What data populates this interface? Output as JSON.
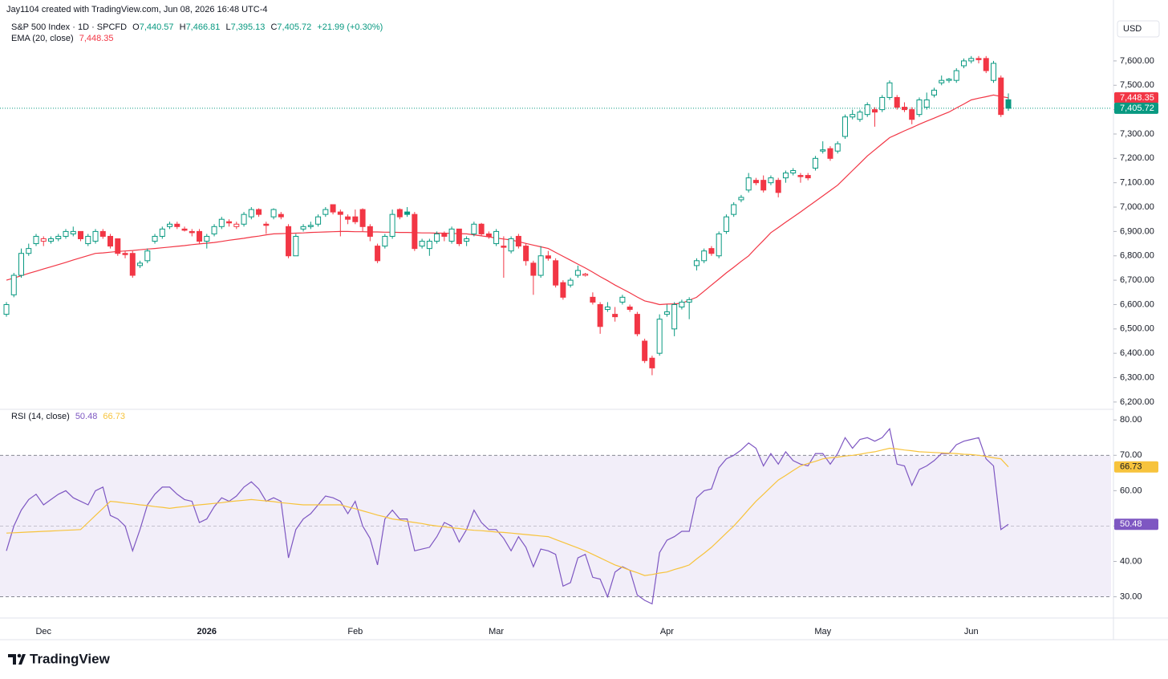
{
  "header": {
    "attribution": "Jay1104 created with TradingView.com, Jun 08, 2026 16:48 UTC-4",
    "currency": "USD",
    "brand": "TradingView"
  },
  "chart_data": [
    {
      "type": "candlestick",
      "title": "S&P 500 Index · 1D · SPCFD",
      "style": "hollow",
      "legend_labels": {
        "prefixes": [
          "O",
          "H",
          "L",
          "C"
        ],
        "values": [
          "7,440.57",
          "7,466.81",
          "7,395.13",
          "7,405.72"
        ],
        "change": "+21.99 (+0.30%)"
      },
      "up_color": "#089981",
      "down_color": "#f23645",
      "categories": [
        null,
        null,
        null,
        null,
        null,
        "Dec",
        null,
        null,
        null,
        null,
        null,
        null,
        null,
        null,
        null,
        null,
        null,
        null,
        null,
        null,
        null,
        null,
        null,
        null,
        null,
        null,
        null,
        "2026",
        null,
        null,
        null,
        null,
        null,
        null,
        null,
        null,
        null,
        null,
        null,
        null,
        null,
        null,
        null,
        null,
        null,
        null,
        null,
        "Feb",
        null,
        null,
        null,
        null,
        null,
        null,
        null,
        null,
        null,
        null,
        null,
        null,
        null,
        null,
        null,
        null,
        null,
        null,
        "Mar",
        null,
        null,
        null,
        null,
        null,
        null,
        null,
        null,
        null,
        null,
        null,
        null,
        null,
        null,
        null,
        null,
        null,
        null,
        null,
        null,
        null,
        null,
        "Apr",
        null,
        null,
        null,
        null,
        null,
        null,
        null,
        null,
        null,
        null,
        null,
        null,
        null,
        null,
        null,
        null,
        null,
        null,
        null,
        null,
        "May",
        null,
        null,
        null,
        null,
        null,
        null,
        null,
        null,
        null,
        null,
        null,
        null,
        null,
        null,
        null,
        null,
        null,
        null,
        null,
        "Jun",
        null,
        null,
        null,
        null,
        null
      ],
      "open": [
        6560,
        6640,
        6720,
        6810,
        6850,
        6860,
        6860,
        6870,
        6880,
        6890,
        6900,
        6850,
        6860,
        6900,
        6880,
        6870,
        6810,
        6810,
        6760,
        6780,
        6860,
        6880,
        6920,
        6930,
        6910,
        6900,
        6900,
        6860,
        6890,
        6920,
        6940,
        6920,
        6930,
        6960,
        6990,
        6930,
        6960,
        6970,
        6920,
        6800,
        6910,
        6920,
        6930,
        6970,
        7010,
        6980,
        6960,
        6960,
        6990,
        6920,
        6840,
        6840,
        6880,
        6990,
        6980,
        6970,
        6840,
        6830,
        6860,
        6890,
        6860,
        6910,
        6860,
        6890,
        6930,
        6890,
        6850,
        6840,
        6820,
        6880,
        6840,
        6770,
        6720,
        6800,
        6780,
        6690,
        6680,
        6720,
        6720,
        6630,
        6600,
        6580,
        6560,
        6610,
        6590,
        6560,
        6450,
        6380,
        6400,
        6560,
        6500,
        6590,
        6610,
        6760,
        6780,
        6830,
        6800,
        6900,
        6970,
        7030,
        7070,
        7110,
        7110,
        7100,
        7110,
        7120,
        7140,
        7130,
        7130,
        7160,
        7230,
        7240,
        7230,
        7290,
        7370,
        7360,
        7380,
        7400,
        7400,
        7450,
        7450,
        7410,
        7400,
        7380,
        7410,
        7460,
        7510,
        7520,
        7520,
        7580,
        7600,
        7610,
        7610,
        7520,
        7530,
        7440.57
      ],
      "high": [
        6610,
        6730,
        6830,
        6850,
        6890,
        6880,
        6880,
        6890,
        6910,
        6920,
        6900,
        6890,
        6910,
        6910,
        6890,
        6870,
        6820,
        6820,
        6780,
        6830,
        6890,
        6920,
        6940,
        6940,
        6920,
        6910,
        6910,
        6890,
        6930,
        6960,
        6950,
        6940,
        6980,
        7000,
        6995,
        6940,
        6995,
        6980,
        6930,
        6890,
        6930,
        6940,
        6970,
        7000,
        7010,
        6990,
        6970,
        6990,
        6995,
        6930,
        6850,
        6890,
        6990,
        6995,
        7000,
        6980,
        6870,
        6870,
        6900,
        6900,
        6920,
        6910,
        6880,
        6940,
        6935,
        6900,
        6910,
        6880,
        6880,
        6890,
        6850,
        6780,
        6840,
        6820,
        6790,
        6700,
        6710,
        6760,
        6730,
        6650,
        6610,
        6610,
        6590,
        6640,
        6600,
        6570,
        6460,
        6390,
        6560,
        6600,
        6610,
        6620,
        6630,
        6790,
        6830,
        6840,
        6900,
        6970,
        7020,
        7050,
        7140,
        7120,
        7130,
        7130,
        7120,
        7150,
        7160,
        7140,
        7140,
        7210,
        7270,
        7250,
        7270,
        7380,
        7400,
        7400,
        7430,
        7410,
        7460,
        7520,
        7460,
        7430,
        7410,
        7450,
        7470,
        7490,
        7540,
        7530,
        7570,
        7610,
        7620,
        7620,
        7620,
        7600,
        7540,
        7466.81
      ],
      "low": [
        6550,
        6630,
        6710,
        6800,
        6840,
        6840,
        6850,
        6860,
        6870,
        6880,
        6860,
        6840,
        6850,
        6870,
        6830,
        6800,
        6790,
        6710,
        6750,
        6770,
        6850,
        6870,
        6910,
        6910,
        6900,
        6880,
        6850,
        6830,
        6880,
        6910,
        6920,
        6910,
        6920,
        6950,
        6960,
        6890,
        6950,
        6950,
        6790,
        6800,
        6900,
        6910,
        6920,
        6960,
        6970,
        6880,
        6930,
        6930,
        6900,
        6860,
        6770,
        6830,
        6870,
        6950,
        6960,
        6820,
        6830,
        6800,
        6850,
        6860,
        6850,
        6840,
        6840,
        6880,
        6880,
        6870,
        6840,
        6710,
        6810,
        6830,
        6760,
        6640,
        6710,
        6780,
        6670,
        6620,
        6670,
        6710,
        6715,
        6600,
        6480,
        6570,
        6530,
        6600,
        6570,
        6470,
        6360,
        6310,
        6390,
        6550,
        6470,
        6580,
        6540,
        6740,
        6770,
        6800,
        6790,
        6890,
        6960,
        7020,
        7060,
        7090,
        7060,
        7090,
        7040,
        7100,
        7130,
        7100,
        7110,
        7150,
        7220,
        7190,
        7220,
        7280,
        7360,
        7350,
        7370,
        7330,
        7390,
        7440,
        7400,
        7390,
        7340,
        7370,
        7400,
        7450,
        7500,
        7510,
        7510,
        7570,
        7590,
        7590,
        7550,
        7510,
        7370,
        7395.13
      ],
      "close": [
        6600,
        6720,
        6810,
        6830,
        6880,
        6870,
        6870,
        6880,
        6900,
        6900,
        6870,
        6880,
        6900,
        6880,
        6840,
        6810,
        6805,
        6720,
        6770,
        6820,
        6880,
        6910,
        6930,
        6920,
        6905,
        6895,
        6860,
        6880,
        6920,
        6950,
        6935,
        6930,
        6970,
        6990,
        6970,
        6925,
        6990,
        6960,
        6800,
        6880,
        6920,
        6925,
        6960,
        6990,
        6980,
        6970,
        6950,
        6940,
        6920,
        6880,
        6780,
        6880,
        6970,
        6960,
        6970,
        6830,
        6860,
        6860,
        6890,
        6880,
        6910,
        6850,
        6870,
        6930,
        6890,
        6880,
        6900,
        6835,
        6870,
        6840,
        6780,
        6720,
        6800,
        6790,
        6680,
        6630,
        6700,
        6740,
        6725,
        6610,
        6510,
        6590,
        6550,
        6630,
        6580,
        6480,
        6370,
        6340,
        6540,
        6570,
        6600,
        6610,
        6620,
        6780,
        6820,
        6810,
        6890,
        6960,
        7010,
        7040,
        7120,
        7100,
        7070,
        7120,
        7060,
        7140,
        7150,
        7125,
        7120,
        7200,
        7235,
        7200,
        7260,
        7370,
        7380,
        7390,
        7420,
        7390,
        7450,
        7510,
        7410,
        7400,
        7360,
        7440,
        7440,
        7480,
        7520,
        7525,
        7560,
        7600,
        7610,
        7605,
        7560,
        7590,
        7380,
        7405.72
      ],
      "series": [
        {
          "name": "EMA (20, close)",
          "color": "#f23645",
          "value_label": "7,448.35",
          "values": [
            6700,
            6709,
            6718,
            6728,
            6737,
            6746,
            6755,
            6764,
            6773,
            6783,
            6792,
            6801,
            6810,
            6812,
            6815,
            6818,
            6820,
            6822,
            6825,
            6828,
            6830,
            6833,
            6836,
            6839,
            6842,
            6846,
            6849,
            6852,
            6855,
            6859,
            6864,
            6868,
            6872,
            6877,
            6881,
            6886,
            6890,
            6891,
            6892,
            6893,
            6894,
            6896,
            6897,
            6898,
            6899,
            6900,
            6900,
            6899,
            6899,
            6898,
            6898,
            6897,
            6897,
            6896,
            6896,
            6895,
            6894,
            6894,
            6893,
            6893,
            6892,
            6891,
            6890,
            6886,
            6882,
            6878,
            6873,
            6869,
            6865,
            6858,
            6851,
            6844,
            6837,
            6830,
            6814,
            6798,
            6782,
            6766,
            6750,
            6733,
            6715,
            6698,
            6680,
            6664,
            6648,
            6631,
            6615,
            6608,
            6600,
            6602,
            6603,
            6605,
            6618,
            6630,
            6655,
            6680,
            6705,
            6730,
            6753,
            6777,
            6800,
            6832,
            6863,
            6895,
            6916,
            6938,
            6959,
            6980,
            7002,
            7024,
            7046,
            7068,
            7090,
            7120,
            7150,
            7180,
            7210,
            7235,
            7260,
            7285,
            7299,
            7313,
            7326,
            7340,
            7353,
            7365,
            7378,
            7390,
            7407,
            7423,
            7440,
            7447,
            7453,
            7460,
            7454,
            7448.35
          ]
        }
      ],
      "ylim": [
        6170,
        7850
      ],
      "yticks": [
        {
          "value": 6200,
          "label": "6,200.00"
        },
        {
          "value": 6300,
          "label": "6,300.00"
        },
        {
          "value": 6400,
          "label": "6,400.00"
        },
        {
          "value": 6500,
          "label": "6,500.00"
        },
        {
          "value": 6600,
          "label": "6,600.00"
        },
        {
          "value": 6700,
          "label": "6,700.00"
        },
        {
          "value": 6800,
          "label": "6,800.00"
        },
        {
          "value": 6900,
          "label": "6,900.00"
        },
        {
          "value": 7000,
          "label": "7,000.00"
        },
        {
          "value": 7100,
          "label": "7,100.00"
        },
        {
          "value": 7200,
          "label": "7,200.00"
        },
        {
          "value": 7300,
          "label": "7,300.00"
        },
        {
          "value": 7400,
          "label": "7,400.00"
        },
        {
          "value": 7500,
          "label": "7,500.00"
        },
        {
          "value": 7600,
          "label": "7,600.00"
        }
      ]
    },
    {
      "type": "line",
      "title": "RSI (14, close)",
      "band": [
        30,
        70
      ],
      "midline": 50,
      "series": [
        {
          "name": "RSI (14, close)",
          "color": "#7e57c2",
          "value_label": "50.48",
          "values": [
            43,
            50,
            54.5,
            57.5,
            59,
            56,
            57.5,
            59,
            60,
            58,
            57,
            56,
            60,
            61,
            53,
            52,
            50,
            43,
            49,
            56,
            59,
            61,
            61,
            59,
            57.5,
            57,
            51,
            52,
            55.5,
            58,
            57,
            58.5,
            61,
            62.5,
            60.5,
            57,
            58,
            57,
            41,
            49,
            52,
            53.5,
            56,
            58.5,
            58,
            57,
            53.5,
            57,
            50,
            46.5,
            39,
            52,
            54.5,
            52,
            52,
            43,
            43.5,
            44,
            47,
            51,
            50,
            45.5,
            49,
            54.5,
            51,
            49,
            49,
            46.5,
            43,
            47,
            44,
            38.5,
            43.5,
            43,
            42,
            33,
            34,
            41,
            42,
            35.5,
            35,
            30,
            37,
            38.5,
            37.5,
            30.5,
            29,
            28,
            42.5,
            46,
            47,
            48.5,
            48.5,
            58,
            60,
            60.5,
            66.5,
            69,
            70,
            71.5,
            73.5,
            72,
            67,
            70.5,
            67.5,
            71,
            68.5,
            67.5,
            67,
            70.5,
            70.5,
            67.5,
            70.5,
            75,
            72,
            74.5,
            75,
            74,
            75,
            77.5,
            67.5,
            67,
            61.5,
            66,
            67,
            68.5,
            70.5,
            70.5,
            73,
            74,
            74.5,
            75,
            69,
            67,
            49,
            50.48
          ]
        },
        {
          "color": "#f7c33c",
          "value_label": "66.73",
          "values": [
            48,
            48.1,
            48.2,
            48.3,
            48.4,
            48.5,
            48.6,
            48.7,
            48.8,
            48.9,
            49,
            51,
            53,
            55,
            57,
            56.8,
            56.5,
            56.3,
            56,
            55.8,
            55.5,
            55.3,
            55,
            55.3,
            55.5,
            55.8,
            56,
            56.2,
            56.4,
            56.6,
            56.9,
            57.1,
            57.3,
            57.5,
            57.3,
            57.1,
            56.9,
            56.6,
            56.4,
            56.2,
            56,
            56,
            56,
            56,
            56,
            56,
            55.4,
            54.9,
            54.3,
            53.7,
            53.1,
            52.6,
            52,
            51.7,
            51.3,
            51,
            50.7,
            50.3,
            50,
            49.8,
            49.5,
            49.3,
            49,
            48.8,
            48.7,
            48.5,
            48.3,
            48.2,
            48,
            47.8,
            47.6,
            47.4,
            47.2,
            47,
            46.2,
            45.4,
            44.6,
            43.8,
            43,
            42,
            41,
            40,
            39,
            38.3,
            37.5,
            36.8,
            36,
            36.3,
            36.7,
            37,
            37.7,
            38.3,
            39,
            40.7,
            42.3,
            44,
            46,
            48,
            50,
            52.3,
            54.7,
            57,
            59,
            61,
            63,
            64.3,
            65.7,
            67,
            67.7,
            68.3,
            69,
            69.3,
            69.5,
            69.8,
            70,
            70.3,
            70.7,
            71,
            71.5,
            72,
            71.8,
            71.5,
            71.3,
            71,
            70.9,
            70.8,
            70.7,
            70.6,
            70.5,
            70.3,
            70.2,
            70,
            69.7,
            69.3,
            69,
            66.73
          ]
        }
      ],
      "ylim": [
        24,
        83
      ],
      "yticks": [
        {
          "value": 30,
          "label": "30.00"
        },
        {
          "value": 40,
          "label": "40.00"
        },
        {
          "value": 50,
          "label": "50.00"
        },
        {
          "value": 60,
          "label": "60.00"
        },
        {
          "value": 70,
          "label": "70.00"
        },
        {
          "value": 80,
          "label": "80.00"
        }
      ]
    }
  ]
}
